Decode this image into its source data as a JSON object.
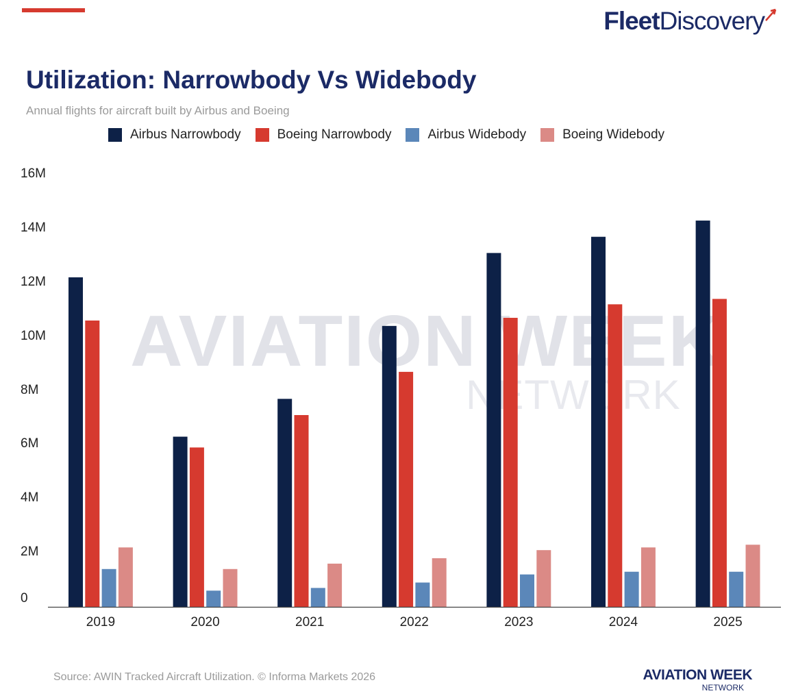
{
  "branding": {
    "top_logo_part1": "Fleet",
    "top_logo_part2": "Discovery",
    "footer_logo_main": "AVIATION WEEK",
    "footer_logo_sub": "NETWORK",
    "watermark_main": "AVIATION WEEK",
    "watermark_sub": "NETWORK",
    "accent_color": "#d63a2f",
    "brand_color": "#1b2a66"
  },
  "source_note": "Source: AWIN Tracked Aircraft Utilization. © Informa Markets 2026",
  "chart_data": {
    "type": "bar",
    "title": "Utilization: Narrowbody Vs Widebody",
    "subtitle": "Annual flights for aircraft built by Airbus and Boeing",
    "categories": [
      "2019",
      "2020",
      "2021",
      "2022",
      "2023",
      "2024",
      "2025"
    ],
    "series": [
      {
        "name": "Airbus Narrowbody",
        "color": "#0d2147",
        "values": [
          12.2,
          6.3,
          7.7,
          10.4,
          13.1,
          13.7,
          14.3
        ]
      },
      {
        "name": "Boeing Narrowbody",
        "color": "#d63a2f",
        "values": [
          10.6,
          5.9,
          7.1,
          8.7,
          10.7,
          11.2,
          11.4
        ]
      },
      {
        "name": "Airbus Widebody",
        "color": "#5b87b9",
        "values": [
          1.4,
          0.6,
          0.7,
          0.9,
          1.2,
          1.3,
          1.3
        ]
      },
      {
        "name": "Boeing Widebody",
        "color": "#db8a86",
        "values": [
          2.2,
          1.4,
          1.6,
          1.8,
          2.1,
          2.2,
          2.3
        ]
      }
    ],
    "yticks": [
      "0",
      "2M",
      "4M",
      "6M",
      "8M",
      "10M",
      "12M",
      "14M",
      "16M"
    ],
    "ylim": [
      0,
      16
    ],
    "yunit": "millions of flights",
    "xlabel": "",
    "ylabel": "",
    "legend_position": "top"
  }
}
